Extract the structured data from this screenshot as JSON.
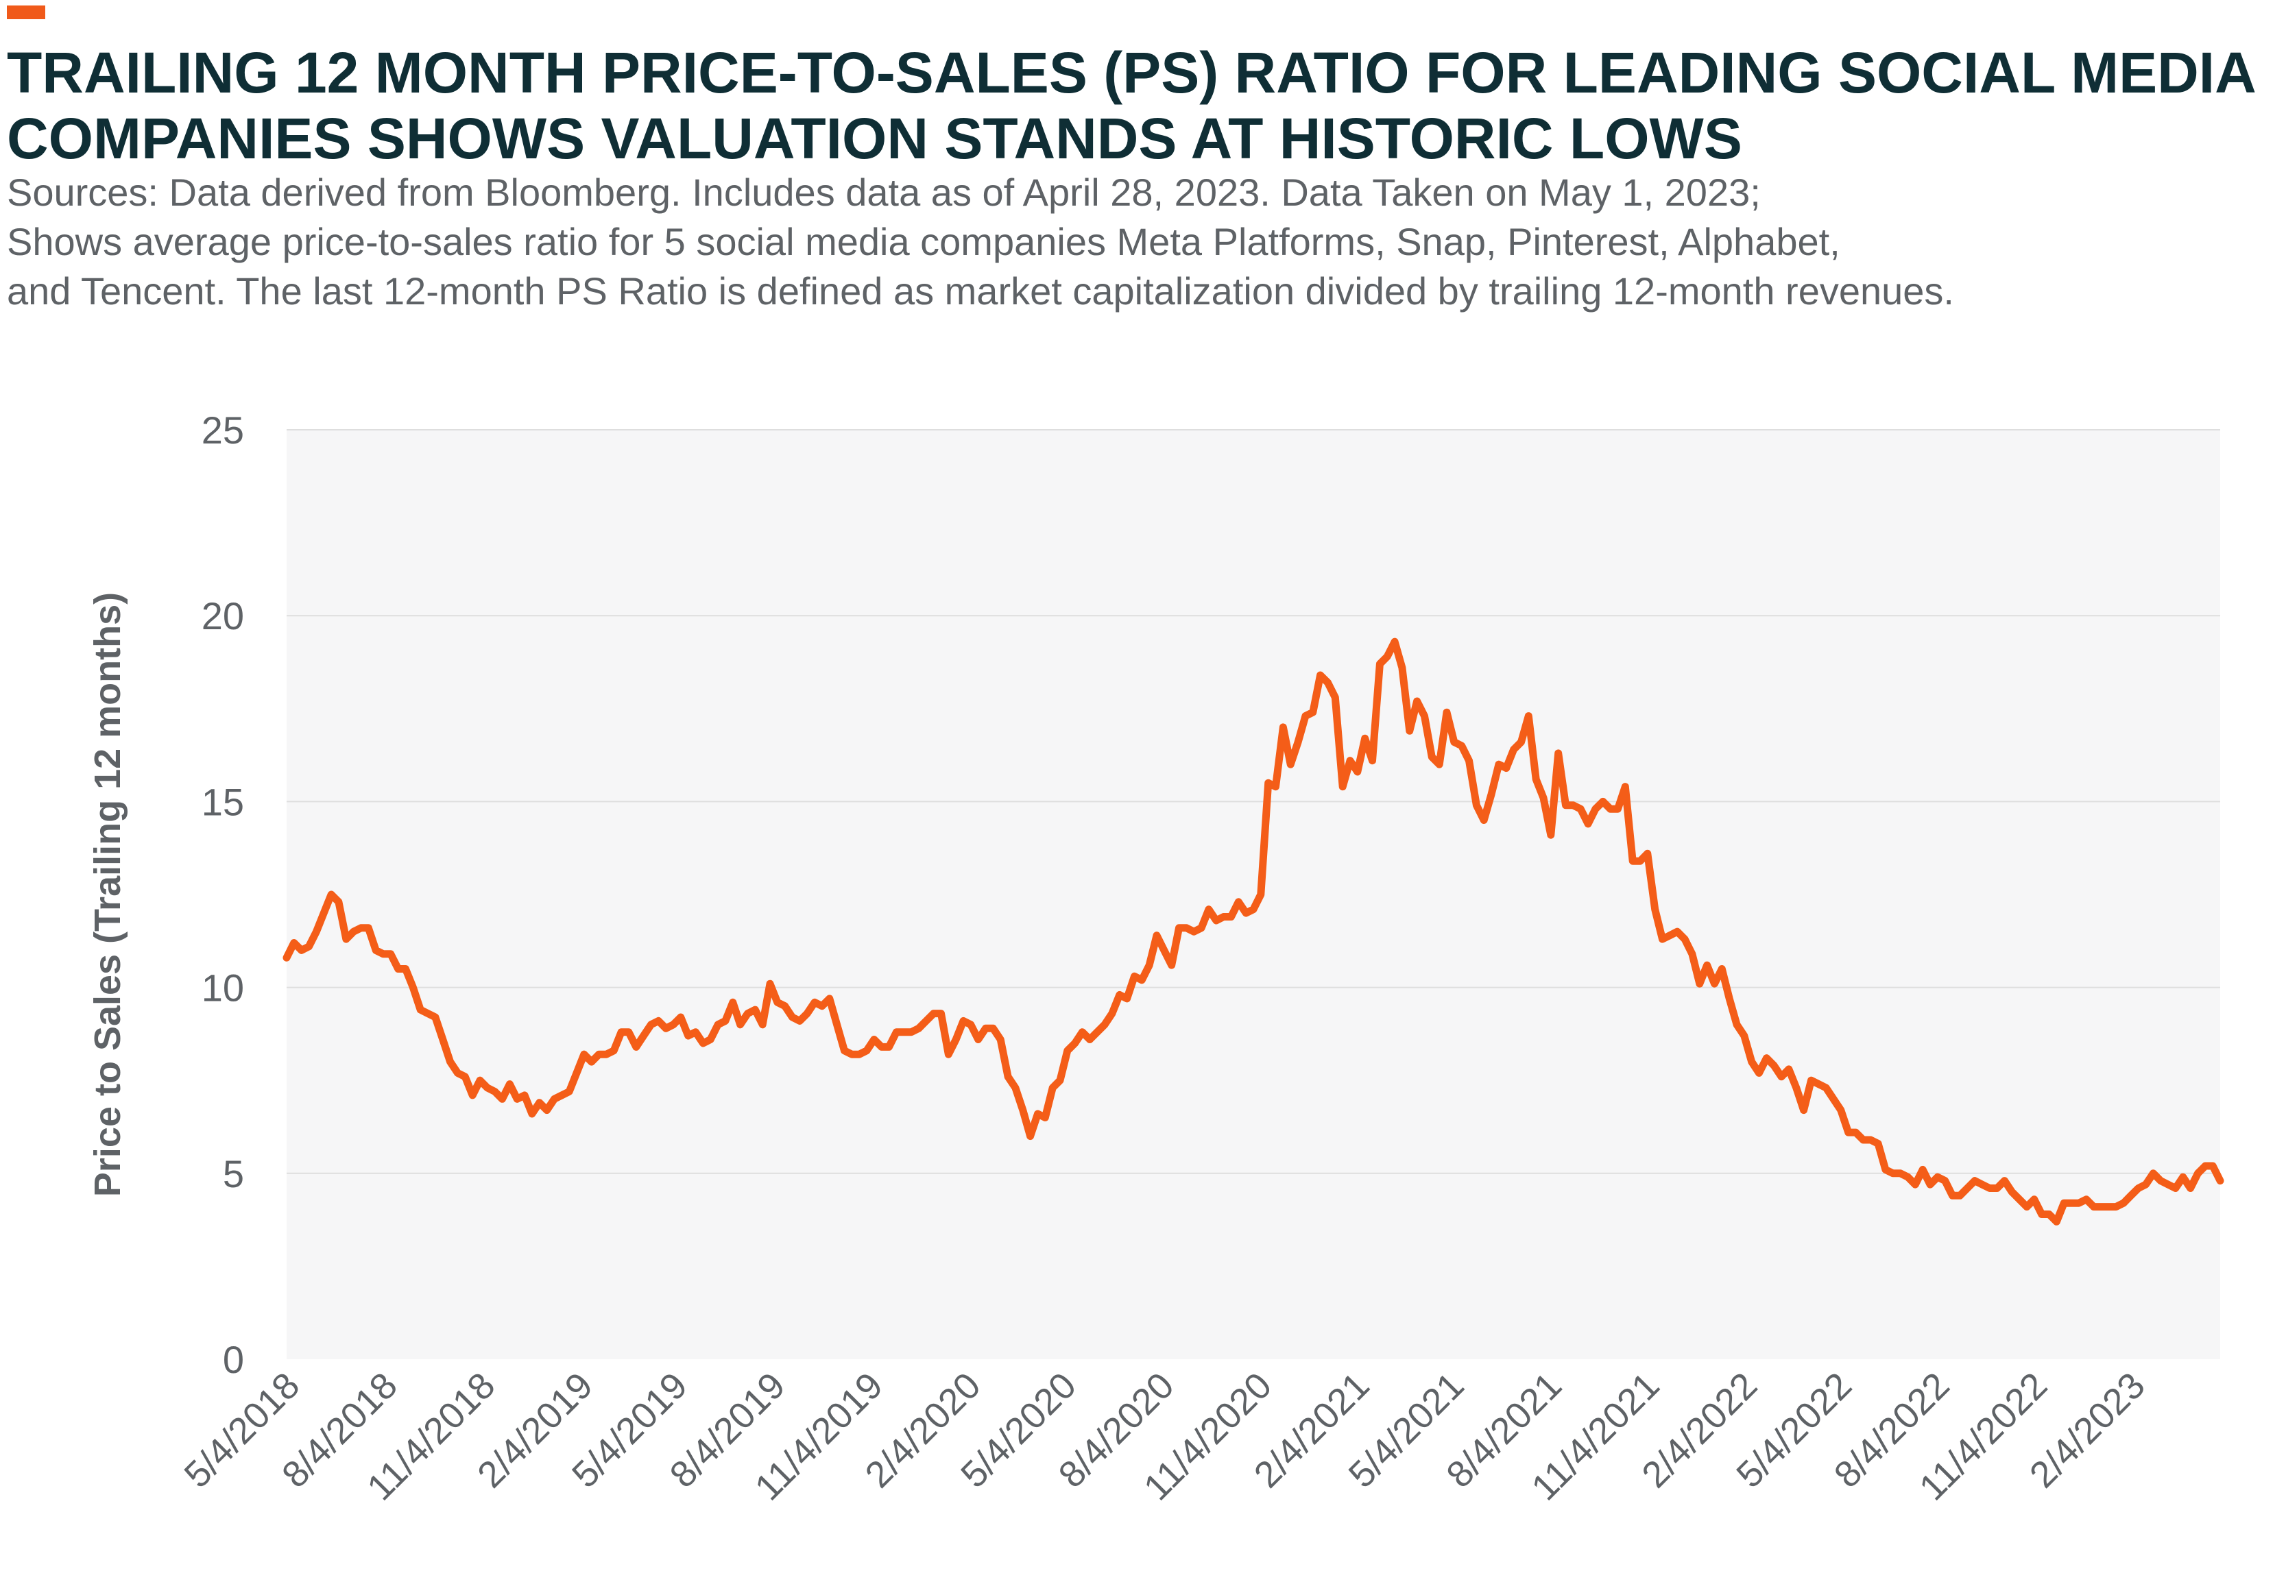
{
  "colors": {
    "accent": "#f05a1a",
    "title": "#0f2e35",
    "text": "#5e6266",
    "plot_bg": "#f6f6f7",
    "grid": "#dedede",
    "line": "#f45d18"
  },
  "header": {
    "title_lines": [
      "TRAILING 12 MONTH PRICE-TO-SALES (PS) RATIO FOR LEADING SOCIAL MEDIA",
      "COMPANIES SHOWS VALUATION STANDS AT HISTORIC LOWS"
    ],
    "subtitle_lines": [
      "Sources: Data derived from Bloomberg. Includes data as of April 28, 2023. Data Taken on May 1, 2023;",
      "Shows average price-to-sales ratio for 5 social media companies Meta Platforms, Snap, Pinterest, Alphabet,",
      "and Tencent. The last 12-month PS Ratio is defined as market capitalization divided by trailing 12-month revenues."
    ]
  },
  "chart_data": {
    "type": "line",
    "title": "TRAILING 12 MONTH PRICE-TO-SALES (PS) RATIO FOR LEADING SOCIAL MEDIA COMPANIES SHOWS VALUATION STANDS AT HISTORIC LOWS",
    "xlabel": "",
    "ylabel": "Price to Sales (Trailing 12 months)",
    "ylim": [
      0,
      25
    ],
    "yticks": [
      0,
      5,
      10,
      15,
      20,
      25
    ],
    "xlim": [
      "5/4/2018",
      "4/28/2023"
    ],
    "xticks": [
      "5/4/2018",
      "8/4/2018",
      "11/4/2018",
      "2/4/2019",
      "5/4/2019",
      "8/4/2019",
      "11/4/2019",
      "2/4/2020",
      "5/4/2020",
      "8/4/2020",
      "11/4/2020",
      "2/4/2021",
      "5/4/2021",
      "8/4/2021",
      "11/4/2021",
      "2/4/2022",
      "5/4/2022",
      "8/4/2022",
      "11/4/2022",
      "2/4/2023"
    ],
    "grid": "horizontal",
    "legend": "none",
    "series": [
      {
        "points": [
          [
            "5/4/2018",
            10.8
          ],
          [
            "5/11/2018",
            11.2
          ],
          [
            "5/18/2018",
            11.0
          ],
          [
            "5/25/2018",
            11.1
          ],
          [
            "6/1/2018",
            11.5
          ],
          [
            "6/8/2018",
            12.0
          ],
          [
            "6/15/2018",
            12.5
          ],
          [
            "6/22/2018",
            12.3
          ],
          [
            "6/29/2018",
            11.3
          ],
          [
            "7/6/2018",
            11.5
          ],
          [
            "7/13/2018",
            11.6
          ],
          [
            "7/20/2018",
            11.6
          ],
          [
            "7/27/2018",
            11.0
          ],
          [
            "8/3/2018",
            10.9
          ],
          [
            "8/10/2018",
            10.9
          ],
          [
            "8/17/2018",
            10.5
          ],
          [
            "8/24/2018",
            10.5
          ],
          [
            "8/31/2018",
            10.0
          ],
          [
            "9/7/2018",
            9.4
          ],
          [
            "9/14/2018",
            9.3
          ],
          [
            "9/21/2018",
            9.2
          ],
          [
            "9/28/2018",
            8.6
          ],
          [
            "10/5/2018",
            8.0
          ],
          [
            "10/12/2018",
            7.7
          ],
          [
            "10/19/2018",
            7.6
          ],
          [
            "10/26/2018",
            7.1
          ],
          [
            "11/2/2018",
            7.5
          ],
          [
            "11/9/2018",
            7.3
          ],
          [
            "11/16/2018",
            7.2
          ],
          [
            "11/23/2018",
            7.0
          ],
          [
            "11/30/2018",
            7.4
          ],
          [
            "12/7/2018",
            7.0
          ],
          [
            "12/14/2018",
            7.1
          ],
          [
            "12/21/2018",
            6.6
          ],
          [
            "12/28/2018",
            6.9
          ],
          [
            "1/4/2019",
            6.7
          ],
          [
            "1/11/2019",
            7.0
          ],
          [
            "1/18/2019",
            7.1
          ],
          [
            "1/25/2019",
            7.2
          ],
          [
            "2/1/2019",
            7.7
          ],
          [
            "2/8/2019",
            8.2
          ],
          [
            "2/15/2019",
            8.0
          ],
          [
            "2/22/2019",
            8.2
          ],
          [
            "3/1/2019",
            8.2
          ],
          [
            "3/8/2019",
            8.3
          ],
          [
            "3/15/2019",
            8.8
          ],
          [
            "3/22/2019",
            8.8
          ],
          [
            "3/29/2019",
            8.4
          ],
          [
            "4/5/2019",
            8.7
          ],
          [
            "4/12/2019",
            9.0
          ],
          [
            "4/19/2019",
            9.1
          ],
          [
            "4/26/2019",
            8.9
          ],
          [
            "5/3/2019",
            9.0
          ],
          [
            "5/10/2019",
            9.2
          ],
          [
            "5/17/2019",
            8.7
          ],
          [
            "5/24/2019",
            8.8
          ],
          [
            "5/31/2019",
            8.5
          ],
          [
            "6/7/2019",
            8.6
          ],
          [
            "6/14/2019",
            9.0
          ],
          [
            "6/21/2019",
            9.1
          ],
          [
            "6/28/2019",
            9.6
          ],
          [
            "7/5/2019",
            9.0
          ],
          [
            "7/12/2019",
            9.3
          ],
          [
            "7/19/2019",
            9.4
          ],
          [
            "7/26/2019",
            9.0
          ],
          [
            "8/2/2019",
            10.1
          ],
          [
            "8/9/2019",
            9.6
          ],
          [
            "8/16/2019",
            9.5
          ],
          [
            "8/23/2019",
            9.2
          ],
          [
            "8/30/2019",
            9.1
          ],
          [
            "9/6/2019",
            9.3
          ],
          [
            "9/13/2019",
            9.6
          ],
          [
            "9/20/2019",
            9.5
          ],
          [
            "9/27/2019",
            9.7
          ],
          [
            "10/4/2019",
            9.0
          ],
          [
            "10/11/2019",
            8.3
          ],
          [
            "10/18/2019",
            8.2
          ],
          [
            "10/25/2019",
            8.2
          ],
          [
            "11/1/2019",
            8.3
          ],
          [
            "11/8/2019",
            8.6
          ],
          [
            "11/15/2019",
            8.4
          ],
          [
            "11/22/2019",
            8.4
          ],
          [
            "11/29/2019",
            8.8
          ],
          [
            "12/6/2019",
            8.8
          ],
          [
            "12/13/2019",
            8.8
          ],
          [
            "12/20/2019",
            8.9
          ],
          [
            "12/27/2019",
            9.1
          ],
          [
            "1/3/2020",
            9.3
          ],
          [
            "1/10/2020",
            9.3
          ],
          [
            "1/17/2020",
            8.2
          ],
          [
            "1/24/2020",
            8.6
          ],
          [
            "1/31/2020",
            9.1
          ],
          [
            "2/7/2020",
            9.0
          ],
          [
            "2/14/2020",
            8.6
          ],
          [
            "2/21/2020",
            8.9
          ],
          [
            "2/28/2020",
            8.9
          ],
          [
            "3/6/2020",
            8.6
          ],
          [
            "3/13/2020",
            7.6
          ],
          [
            "3/20/2020",
            7.3
          ],
          [
            "3/27/2020",
            6.7
          ],
          [
            "4/3/2020",
            6.0
          ],
          [
            "4/10/2020",
            6.6
          ],
          [
            "4/17/2020",
            6.5
          ],
          [
            "4/24/2020",
            7.3
          ],
          [
            "5/1/2020",
            7.5
          ],
          [
            "5/8/2020",
            8.3
          ],
          [
            "5/15/2020",
            8.5
          ],
          [
            "5/22/2020",
            8.8
          ],
          [
            "5/29/2020",
            8.6
          ],
          [
            "6/5/2020",
            8.8
          ],
          [
            "6/12/2020",
            9.0
          ],
          [
            "6/19/2020",
            9.3
          ],
          [
            "6/26/2020",
            9.8
          ],
          [
            "7/3/2020",
            9.7
          ],
          [
            "7/10/2020",
            10.3
          ],
          [
            "7/17/2020",
            10.2
          ],
          [
            "7/24/2020",
            10.6
          ],
          [
            "7/31/2020",
            11.4
          ],
          [
            "8/7/2020",
            11.0
          ],
          [
            "8/14/2020",
            10.6
          ],
          [
            "8/21/2020",
            11.6
          ],
          [
            "8/28/2020",
            11.6
          ],
          [
            "9/4/2020",
            11.5
          ],
          [
            "9/11/2020",
            11.6
          ],
          [
            "9/18/2020",
            12.1
          ],
          [
            "9/25/2020",
            11.8
          ],
          [
            "10/2/2020",
            11.9
          ],
          [
            "10/9/2020",
            11.9
          ],
          [
            "10/16/2020",
            12.3
          ],
          [
            "10/23/2020",
            12.0
          ],
          [
            "10/30/2020",
            12.1
          ],
          [
            "11/6/2020",
            12.5
          ],
          [
            "11/13/2020",
            15.5
          ],
          [
            "11/20/2020",
            15.4
          ],
          [
            "11/27/2020",
            17.0
          ],
          [
            "12/4/2020",
            16.0
          ],
          [
            "12/11/2020",
            16.6
          ],
          [
            "12/18/2020",
            17.3
          ],
          [
            "12/25/2020",
            17.4
          ],
          [
            "1/1/2021",
            18.4
          ],
          [
            "1/8/2021",
            18.2
          ],
          [
            "1/15/2021",
            17.8
          ],
          [
            "1/22/2021",
            15.4
          ],
          [
            "1/29/2021",
            16.1
          ],
          [
            "2/5/2021",
            15.8
          ],
          [
            "2/12/2021",
            16.7
          ],
          [
            "2/19/2021",
            16.1
          ],
          [
            "2/26/2021",
            18.7
          ],
          [
            "3/5/2021",
            18.9
          ],
          [
            "3/12/2021",
            19.3
          ],
          [
            "3/19/2021",
            18.6
          ],
          [
            "3/26/2021",
            16.9
          ],
          [
            "4/2/2021",
            17.7
          ],
          [
            "4/9/2021",
            17.3
          ],
          [
            "4/16/2021",
            16.2
          ],
          [
            "4/23/2021",
            16.0
          ],
          [
            "4/30/2021",
            17.4
          ],
          [
            "5/7/2021",
            16.6
          ],
          [
            "5/14/2021",
            16.5
          ],
          [
            "5/21/2021",
            16.1
          ],
          [
            "5/28/2021",
            14.9
          ],
          [
            "6/4/2021",
            14.5
          ],
          [
            "6/11/2021",
            15.2
          ],
          [
            "6/18/2021",
            16.0
          ],
          [
            "6/25/2021",
            15.9
          ],
          [
            "7/2/2021",
            16.4
          ],
          [
            "7/9/2021",
            16.6
          ],
          [
            "7/16/2021",
            17.3
          ],
          [
            "7/23/2021",
            15.6
          ],
          [
            "7/30/2021",
            15.1
          ],
          [
            "8/6/2021",
            14.1
          ],
          [
            "8/13/2021",
            16.3
          ],
          [
            "8/20/2021",
            14.9
          ],
          [
            "8/27/2021",
            14.9
          ],
          [
            "9/3/2021",
            14.8
          ],
          [
            "9/10/2021",
            14.4
          ],
          [
            "9/17/2021",
            14.8
          ],
          [
            "9/24/2021",
            15.0
          ],
          [
            "10/1/2021",
            14.8
          ],
          [
            "10/8/2021",
            14.8
          ],
          [
            "10/15/2021",
            15.4
          ],
          [
            "10/22/2021",
            13.4
          ],
          [
            "10/29/2021",
            13.4
          ],
          [
            "11/5/2021",
            13.6
          ],
          [
            "11/12/2021",
            12.1
          ],
          [
            "11/19/2021",
            11.3
          ],
          [
            "11/26/2021",
            11.4
          ],
          [
            "12/3/2021",
            11.5
          ],
          [
            "12/10/2021",
            11.3
          ],
          [
            "12/17/2021",
            10.9
          ],
          [
            "12/24/2021",
            10.1
          ],
          [
            "12/31/2021",
            10.6
          ],
          [
            "1/7/2022",
            10.1
          ],
          [
            "1/14/2022",
            10.5
          ],
          [
            "1/21/2022",
            9.7
          ],
          [
            "1/28/2022",
            9.0
          ],
          [
            "2/4/2022",
            8.7
          ],
          [
            "2/11/2022",
            8.0
          ],
          [
            "2/18/2022",
            7.7
          ],
          [
            "2/25/2022",
            8.1
          ],
          [
            "3/4/2022",
            7.9
          ],
          [
            "3/11/2022",
            7.6
          ],
          [
            "3/18/2022",
            7.8
          ],
          [
            "3/25/2022",
            7.3
          ],
          [
            "4/1/2022",
            6.7
          ],
          [
            "4/8/2022",
            7.5
          ],
          [
            "4/15/2022",
            7.4
          ],
          [
            "4/22/2022",
            7.3
          ],
          [
            "4/29/2022",
            7.0
          ],
          [
            "5/6/2022",
            6.7
          ],
          [
            "5/13/2022",
            6.1
          ],
          [
            "5/20/2022",
            6.1
          ],
          [
            "5/27/2022",
            5.9
          ],
          [
            "6/3/2022",
            5.9
          ],
          [
            "6/10/2022",
            5.8
          ],
          [
            "6/17/2022",
            5.1
          ],
          [
            "6/24/2022",
            5.0
          ],
          [
            "7/1/2022",
            5.0
          ],
          [
            "7/8/2022",
            4.9
          ],
          [
            "7/15/2022",
            4.7
          ],
          [
            "7/22/2022",
            5.1
          ],
          [
            "7/29/2022",
            4.7
          ],
          [
            "8/5/2022",
            4.9
          ],
          [
            "8/12/2022",
            4.8
          ],
          [
            "8/19/2022",
            4.4
          ],
          [
            "8/26/2022",
            4.4
          ],
          [
            "9/2/2022",
            4.6
          ],
          [
            "9/9/2022",
            4.8
          ],
          [
            "9/16/2022",
            4.7
          ],
          [
            "9/23/2022",
            4.6
          ],
          [
            "9/30/2022",
            4.6
          ],
          [
            "10/7/2022",
            4.8
          ],
          [
            "10/14/2022",
            4.5
          ],
          [
            "10/21/2022",
            4.3
          ],
          [
            "10/28/2022",
            4.1
          ],
          [
            "11/4/2022",
            4.3
          ],
          [
            "11/11/2022",
            3.9
          ],
          [
            "11/18/2022",
            3.9
          ],
          [
            "11/25/2022",
            3.7
          ],
          [
            "12/2/2022",
            4.2
          ],
          [
            "12/9/2022",
            4.2
          ],
          [
            "12/16/2022",
            4.2
          ],
          [
            "12/23/2022",
            4.3
          ],
          [
            "12/30/2022",
            4.1
          ],
          [
            "1/6/2023",
            4.1
          ],
          [
            "1/13/2023",
            4.1
          ],
          [
            "1/20/2023",
            4.1
          ],
          [
            "1/27/2023",
            4.2
          ],
          [
            "2/3/2023",
            4.4
          ],
          [
            "2/10/2023",
            4.6
          ],
          [
            "2/17/2023",
            4.7
          ],
          [
            "2/24/2023",
            5.0
          ],
          [
            "3/3/2023",
            4.8
          ],
          [
            "3/10/2023",
            4.7
          ],
          [
            "3/17/2023",
            4.6
          ],
          [
            "3/24/2023",
            4.9
          ],
          [
            "3/31/2023",
            4.6
          ],
          [
            "4/7/2023",
            5.0
          ],
          [
            "4/14/2023",
            5.2
          ],
          [
            "4/21/2023",
            5.2
          ],
          [
            "4/28/2023",
            4.8
          ]
        ]
      }
    ]
  }
}
